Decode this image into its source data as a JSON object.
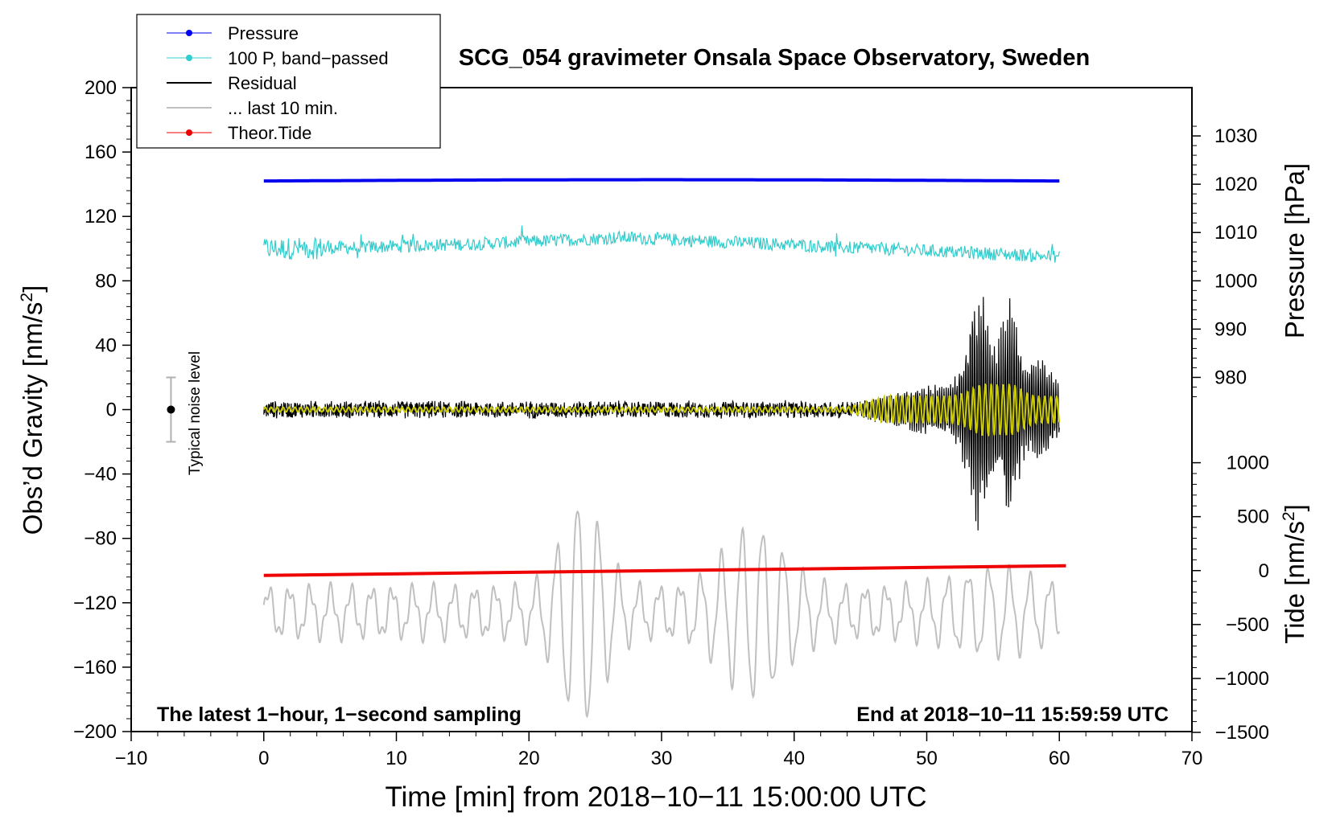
{
  "chart_data": {
    "type": "line",
    "title": "SCG_054 gravimeter Onsala Space Observatory, Sweden",
    "xlabel": "Time [min] from 2018−10−11 15:00:00 UTC",
    "ylabel_main": "Obs’d Gravity [nm/s",
    "ylabel_main_sup": "2",
    "ylabel_main_end": "]",
    "ylabel_pressure": "Pressure [hPa]",
    "ylabel_tide": "Tide [nm/s",
    "ylabel_tide_sup": "2",
    "ylabel_tide_end": "]",
    "xlim": [
      -10,
      70
    ],
    "ylim": [
      -200,
      200
    ],
    "x_ticks": [
      -10,
      0,
      10,
      20,
      30,
      40,
      50,
      60,
      70
    ],
    "x_tick_labels": [
      "−10",
      "0",
      "10",
      "20",
      "30",
      "40",
      "50",
      "60",
      "70"
    ],
    "y_ticks": [
      200,
      160,
      120,
      80,
      40,
      0,
      -40,
      -80,
      -120,
      -160,
      -200
    ],
    "y_tick_labels": [
      "200",
      "160",
      "120",
      "80",
      "40",
      "0",
      "−40",
      "−80",
      "−120",
      "−160",
      "−200"
    ],
    "pressure_axis": {
      "ticks": [
        1030,
        1020,
        1010,
        1000,
        990,
        980
      ],
      "tick_labels": [
        "1030",
        "1020",
        "1010",
        "1000",
        "990",
        "980"
      ],
      "range": [
        1030,
        980
      ]
    },
    "tide_axis": {
      "ticks": [
        1000,
        500,
        0,
        -500,
        -1000,
        -1500
      ],
      "tick_labels": [
        "1000",
        "500",
        "0",
        "−500",
        "−1000",
        "−1500"
      ],
      "range": [
        1000,
        -1500
      ]
    },
    "legend": {
      "position": "top-left",
      "entries": [
        {
          "label": "Pressure",
          "color": "#0000ee",
          "marker": true
        },
        {
          "label": "100 P, band−passed",
          "color": "#33cccc",
          "marker": true
        },
        {
          "label": "Residual",
          "color": "#000000",
          "marker": false
        },
        {
          "label": "... last 10 min.",
          "color": "#c0c0c0",
          "marker": false
        },
        {
          "label": "Theor.Tide",
          "color": "#ee0000",
          "marker": true
        }
      ]
    },
    "series": [
      {
        "name": "Pressure",
        "color": "#0000ee",
        "x_range": [
          0,
          60
        ],
        "y_start": 142,
        "y_mid": 143,
        "y_end": 142
      },
      {
        "name": "100 P, band−passed",
        "color": "#33cccc",
        "x_range": [
          0,
          60
        ],
        "baseline_start": 100,
        "baseline_peak": 107,
        "baseline_end": 95,
        "peak_at": 27
      },
      {
        "name": "Residual",
        "color": "#000000",
        "x_range": [
          0,
          60
        ],
        "baseline": 0,
        "quiet_amplitude": 6,
        "max": 73,
        "min": -82,
        "disturbance_from": 45
      },
      {
        "name": "... last 10 min.",
        "color": "#c0c0c0",
        "x_range": [
          0,
          60
        ],
        "baseline": -122,
        "max": -50,
        "min": -208
      },
      {
        "name": "Theor.Tide",
        "color": "#ee0000",
        "x_range": [
          0,
          60.5
        ],
        "y_start": -103,
        "y_end": -97
      },
      {
        "name": "Residual filtered",
        "color": "#cccc00",
        "x_range": [
          0,
          60
        ],
        "baseline": 0
      }
    ],
    "noise_bar": {
      "label": "Typical noise level",
      "x": -7,
      "center": 0,
      "half_range": 20
    },
    "annotations": {
      "bottom_left": "The latest 1−hour, 1−second sampling",
      "bottom_right": "End at 2018−10−11 15:59:59 UTC"
    }
  }
}
